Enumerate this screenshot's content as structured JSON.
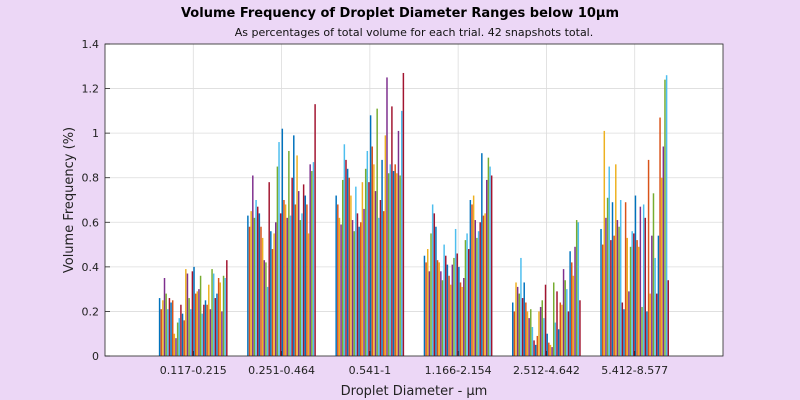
{
  "chart_data": {
    "type": "bar",
    "title": "Volume Frequency of Droplet Diameter Ranges below 10μm",
    "subtitle": "As percentages of total volume for each trial. 42 snapshots total.",
    "xlabel": "Droplet Diameter - μm",
    "ylabel": "Volume Frequency (%)",
    "ylim": [
      0,
      1.4
    ],
    "yticks": [
      "0",
      "0.2",
      "0.4",
      "0.6",
      "0.8",
      "1",
      "1.2",
      "1.4"
    ],
    "grid": true,
    "categories": [
      "0.117-0.215",
      "0.251-0.464",
      "0.541-1",
      "1.166-2.154",
      "2.512-4.642",
      "5.412-8.577"
    ],
    "series_colors": [
      "#0072bd",
      "#d95319",
      "#edb120",
      "#7e2f8e",
      "#77ac30",
      "#4dbeee",
      "#a2142f"
    ],
    "snapshot_values": [
      [
        0.26,
        0.21,
        0.25,
        0.35,
        0.28,
        0.21,
        0.26,
        0.24,
        0.25,
        0.1,
        0.08,
        0.15,
        0.17,
        0.23,
        0.19,
        0.16,
        0.39,
        0.37,
        0.26,
        0.21,
        0.38,
        0.4,
        0.28,
        0.29,
        0.3,
        0.36,
        0.19,
        0.23,
        0.25,
        0.23,
        0.32,
        0.21,
        0.39,
        0.37,
        0.26,
        0.28,
        0.35,
        0.33,
        0.2,
        0.36,
        0.35,
        0.43
      ],
      [
        0.63,
        0.58,
        0.65,
        0.81,
        0.62,
        0.7,
        0.67,
        0.64,
        0.58,
        0.53,
        0.43,
        0.42,
        0.31,
        0.78,
        0.56,
        0.48,
        0.55,
        0.6,
        0.85,
        0.96,
        0.64,
        1.02,
        0.7,
        0.68,
        0.62,
        0.92,
        0.63,
        0.8,
        0.99,
        0.68,
        0.9,
        0.74,
        0.61,
        0.64,
        0.77,
        0.72,
        0.68,
        0.55,
        0.86,
        0.83,
        0.87,
        1.13
      ],
      [
        0.72,
        0.68,
        0.62,
        0.59,
        0.79,
        0.95,
        0.88,
        0.84,
        0.8,
        0.72,
        0.61,
        0.56,
        0.76,
        0.64,
        0.58,
        0.6,
        0.78,
        0.66,
        0.84,
        0.92,
        0.78,
        1.08,
        0.94,
        0.86,
        0.74,
        1.11,
        0.62,
        0.7,
        0.88,
        0.65,
        0.99,
        1.25,
        0.82,
        0.86,
        1.12,
        0.83,
        0.86,
        0.82,
        1.01,
        0.81,
        1.1,
        1.27
      ],
      [
        0.45,
        0.42,
        0.48,
        0.38,
        0.55,
        0.68,
        0.64,
        0.58,
        0.43,
        0.42,
        0.38,
        0.34,
        0.5,
        0.45,
        0.41,
        0.36,
        0.32,
        0.41,
        0.44,
        0.57,
        0.46,
        0.4,
        0.33,
        0.31,
        0.35,
        0.52,
        0.55,
        0.48,
        0.7,
        0.68,
        0.72,
        0.61,
        0.53,
        0.56,
        0.6,
        0.91,
        0.63,
        0.64,
        0.79,
        0.89,
        0.85,
        0.81
      ],
      [
        0.24,
        0.2,
        0.33,
        0.31,
        0.28,
        0.44,
        0.26,
        0.33,
        0.24,
        0.2,
        0.17,
        0.21,
        0.13,
        0.07,
        0.05,
        0.09,
        0.2,
        0.22,
        0.25,
        0.17,
        0.32,
        0.1,
        0.06,
        0.05,
        0.04,
        0.33,
        0.15,
        0.29,
        0.12,
        0.24,
        0.23,
        0.39,
        0.34,
        0.3,
        0.2,
        0.47,
        0.42,
        0.36,
        0.49,
        0.61,
        0.6,
        0.25
      ],
      [
        0.57,
        0.5,
        1.01,
        0.62,
        0.71,
        0.85,
        0.52,
        0.69,
        0.54,
        0.86,
        0.61,
        0.58,
        0.7,
        0.24,
        0.21,
        0.69,
        0.53,
        0.29,
        0.49,
        0.56,
        0.55,
        0.72,
        0.52,
        0.49,
        0.67,
        0.22,
        0.68,
        0.62,
        0.2,
        0.88,
        0.28,
        0.54,
        0.73,
        0.44,
        0.28,
        0.54,
        1.07,
        0.8,
        0.94,
        1.24,
        1.26,
        0.34
      ]
    ]
  }
}
